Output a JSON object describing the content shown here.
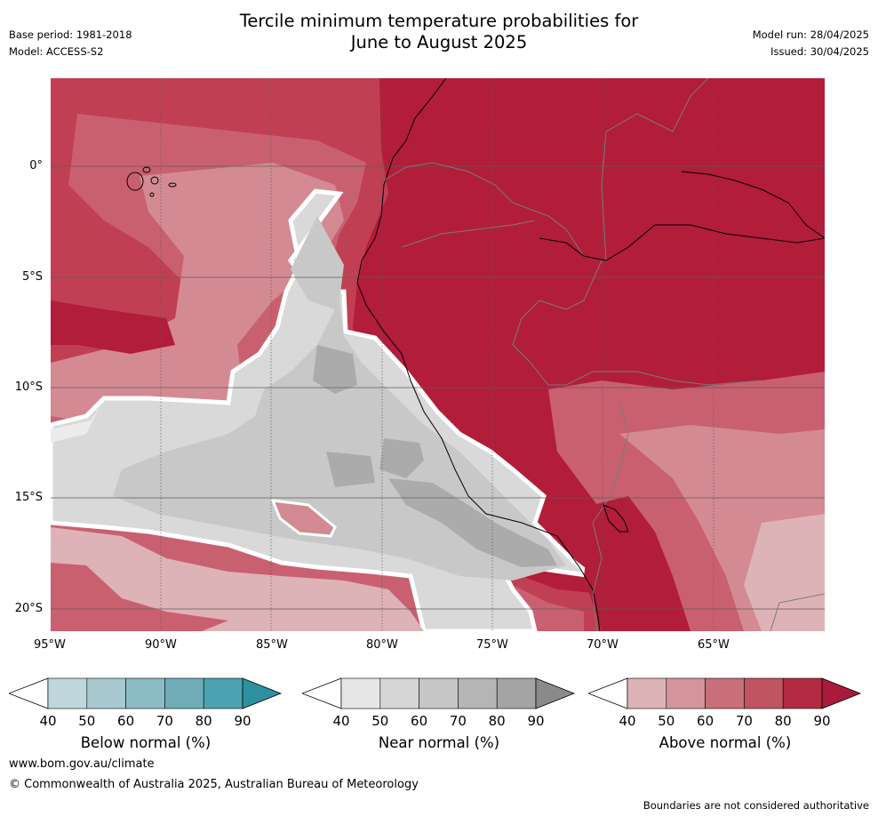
{
  "header": {
    "title_line1": "Tercile minimum temperature probabilities for",
    "title_line2": "June to August 2025",
    "base_period": "Base period: 1981-2018",
    "model": "Model: ACCESS-S2",
    "model_run": "Model run: 28/04/2025",
    "issued": "Issued: 30/04/2025"
  },
  "map": {
    "lon_labels": [
      "95°W",
      "90°W",
      "85°W",
      "80°W",
      "75°W",
      "70°W",
      "65°W"
    ],
    "lat_labels": [
      "0°",
      "5°S",
      "10°S",
      "15°S",
      "20°S"
    ],
    "gridlines": true,
    "colors": {
      "above_90": "#b21d3a",
      "above_80": "#c13f52",
      "above_70": "#c96070",
      "above_60": "#d38a93",
      "above_50": "#deb3b8",
      "near_50": "#d9d9d9",
      "near_60": "#c8c8c8",
      "near_70": "#ababab",
      "white_40": "#ececec"
    }
  },
  "colorbars": [
    {
      "name": "below",
      "title": "Below normal (%)",
      "ticks": [
        "40",
        "50",
        "60",
        "70",
        "80",
        "90"
      ],
      "colors": [
        "#bed7dc",
        "#a7c9cf",
        "#8abcc5",
        "#6eadb8",
        "#4ba2b0",
        "#2e8fa1"
      ]
    },
    {
      "name": "near",
      "title": "Near normal (%)",
      "ticks": [
        "40",
        "50",
        "60",
        "70",
        "80",
        "90"
      ],
      "colors": [
        "#e6e6e6",
        "#d6d6d6",
        "#c6c6c6",
        "#b5b5b5",
        "#a4a4a4",
        "#8a8a8a"
      ]
    },
    {
      "name": "above",
      "title": "Above normal (%)",
      "ticks": [
        "40",
        "50",
        "60",
        "70",
        "80",
        "90"
      ],
      "colors": [
        "#deb3b8",
        "#d3959b",
        "#c96f7a",
        "#c05562",
        "#b32b42",
        "#aa1a3a"
      ]
    }
  ],
  "footer": {
    "url": "www.bom.gov.au/climate",
    "copyright": "© Commonwealth of Australia 2025, Australian Bureau of Meteorology",
    "disclaimer": "Boundaries are not considered authoritative"
  }
}
